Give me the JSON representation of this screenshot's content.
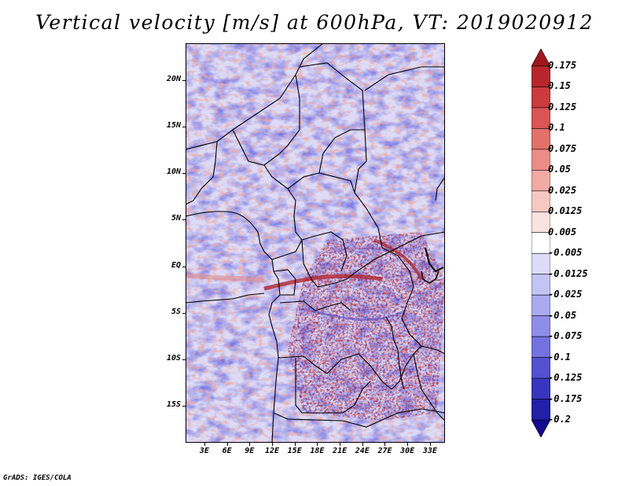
{
  "title": "Vertical velocity [m/s] at 600hPa, VT: 2019020912",
  "credit": "GrADS: IGES/COLA",
  "map": {
    "lat_range": [
      -19,
      24
    ],
    "lon_range": [
      0.5,
      35
    ],
    "lat_ticks": [
      {
        "value": 20,
        "label": "20N"
      },
      {
        "value": 15,
        "label": "15N"
      },
      {
        "value": 10,
        "label": "10N"
      },
      {
        "value": 5,
        "label": "5N"
      },
      {
        "value": 0,
        "label": "EQ"
      },
      {
        "value": -5,
        "label": "5S"
      },
      {
        "value": -10,
        "label": "10S"
      },
      {
        "value": -15,
        "label": "15S"
      }
    ],
    "lon_ticks": [
      {
        "value": 3,
        "label": "3E"
      },
      {
        "value": 6,
        "label": "6E"
      },
      {
        "value": 9,
        "label": "9E"
      },
      {
        "value": 12,
        "label": "12E"
      },
      {
        "value": 15,
        "label": "15E"
      },
      {
        "value": 18,
        "label": "18E"
      },
      {
        "value": 21,
        "label": "21E"
      },
      {
        "value": 24,
        "label": "24E"
      },
      {
        "value": 27,
        "label": "27E"
      },
      {
        "value": 30,
        "label": "30E"
      },
      {
        "value": 33,
        "label": "33E"
      }
    ]
  },
  "colorbar": {
    "labels": [
      "0.175",
      "0.15",
      "0.125",
      "0.1",
      "0.075",
      "0.05",
      "0.025",
      "0.0125",
      "0.005",
      "-0.005",
      "-0.0125",
      "-0.025",
      "-0.05",
      "-0.075",
      "-0.1",
      "-0.125",
      "-0.175",
      "-0.2"
    ],
    "colors": [
      "#a0161c",
      "#b8262c",
      "#cc3a3c",
      "#dc5454",
      "#e4706a",
      "#ec8c86",
      "#f2aaa4",
      "#f6c8c2",
      "#fae2de",
      "#ffffff",
      "#dcdcf8",
      "#c4c4f4",
      "#aaaaf0",
      "#8e8ee8",
      "#7272e0",
      "#5252d2",
      "#3636c0",
      "#2020a8",
      "#120a90"
    ]
  },
  "colors": {
    "positive": "#cc3a3c",
    "negative": "#6e6ee6",
    "background_field": "#d8d8f8"
  }
}
